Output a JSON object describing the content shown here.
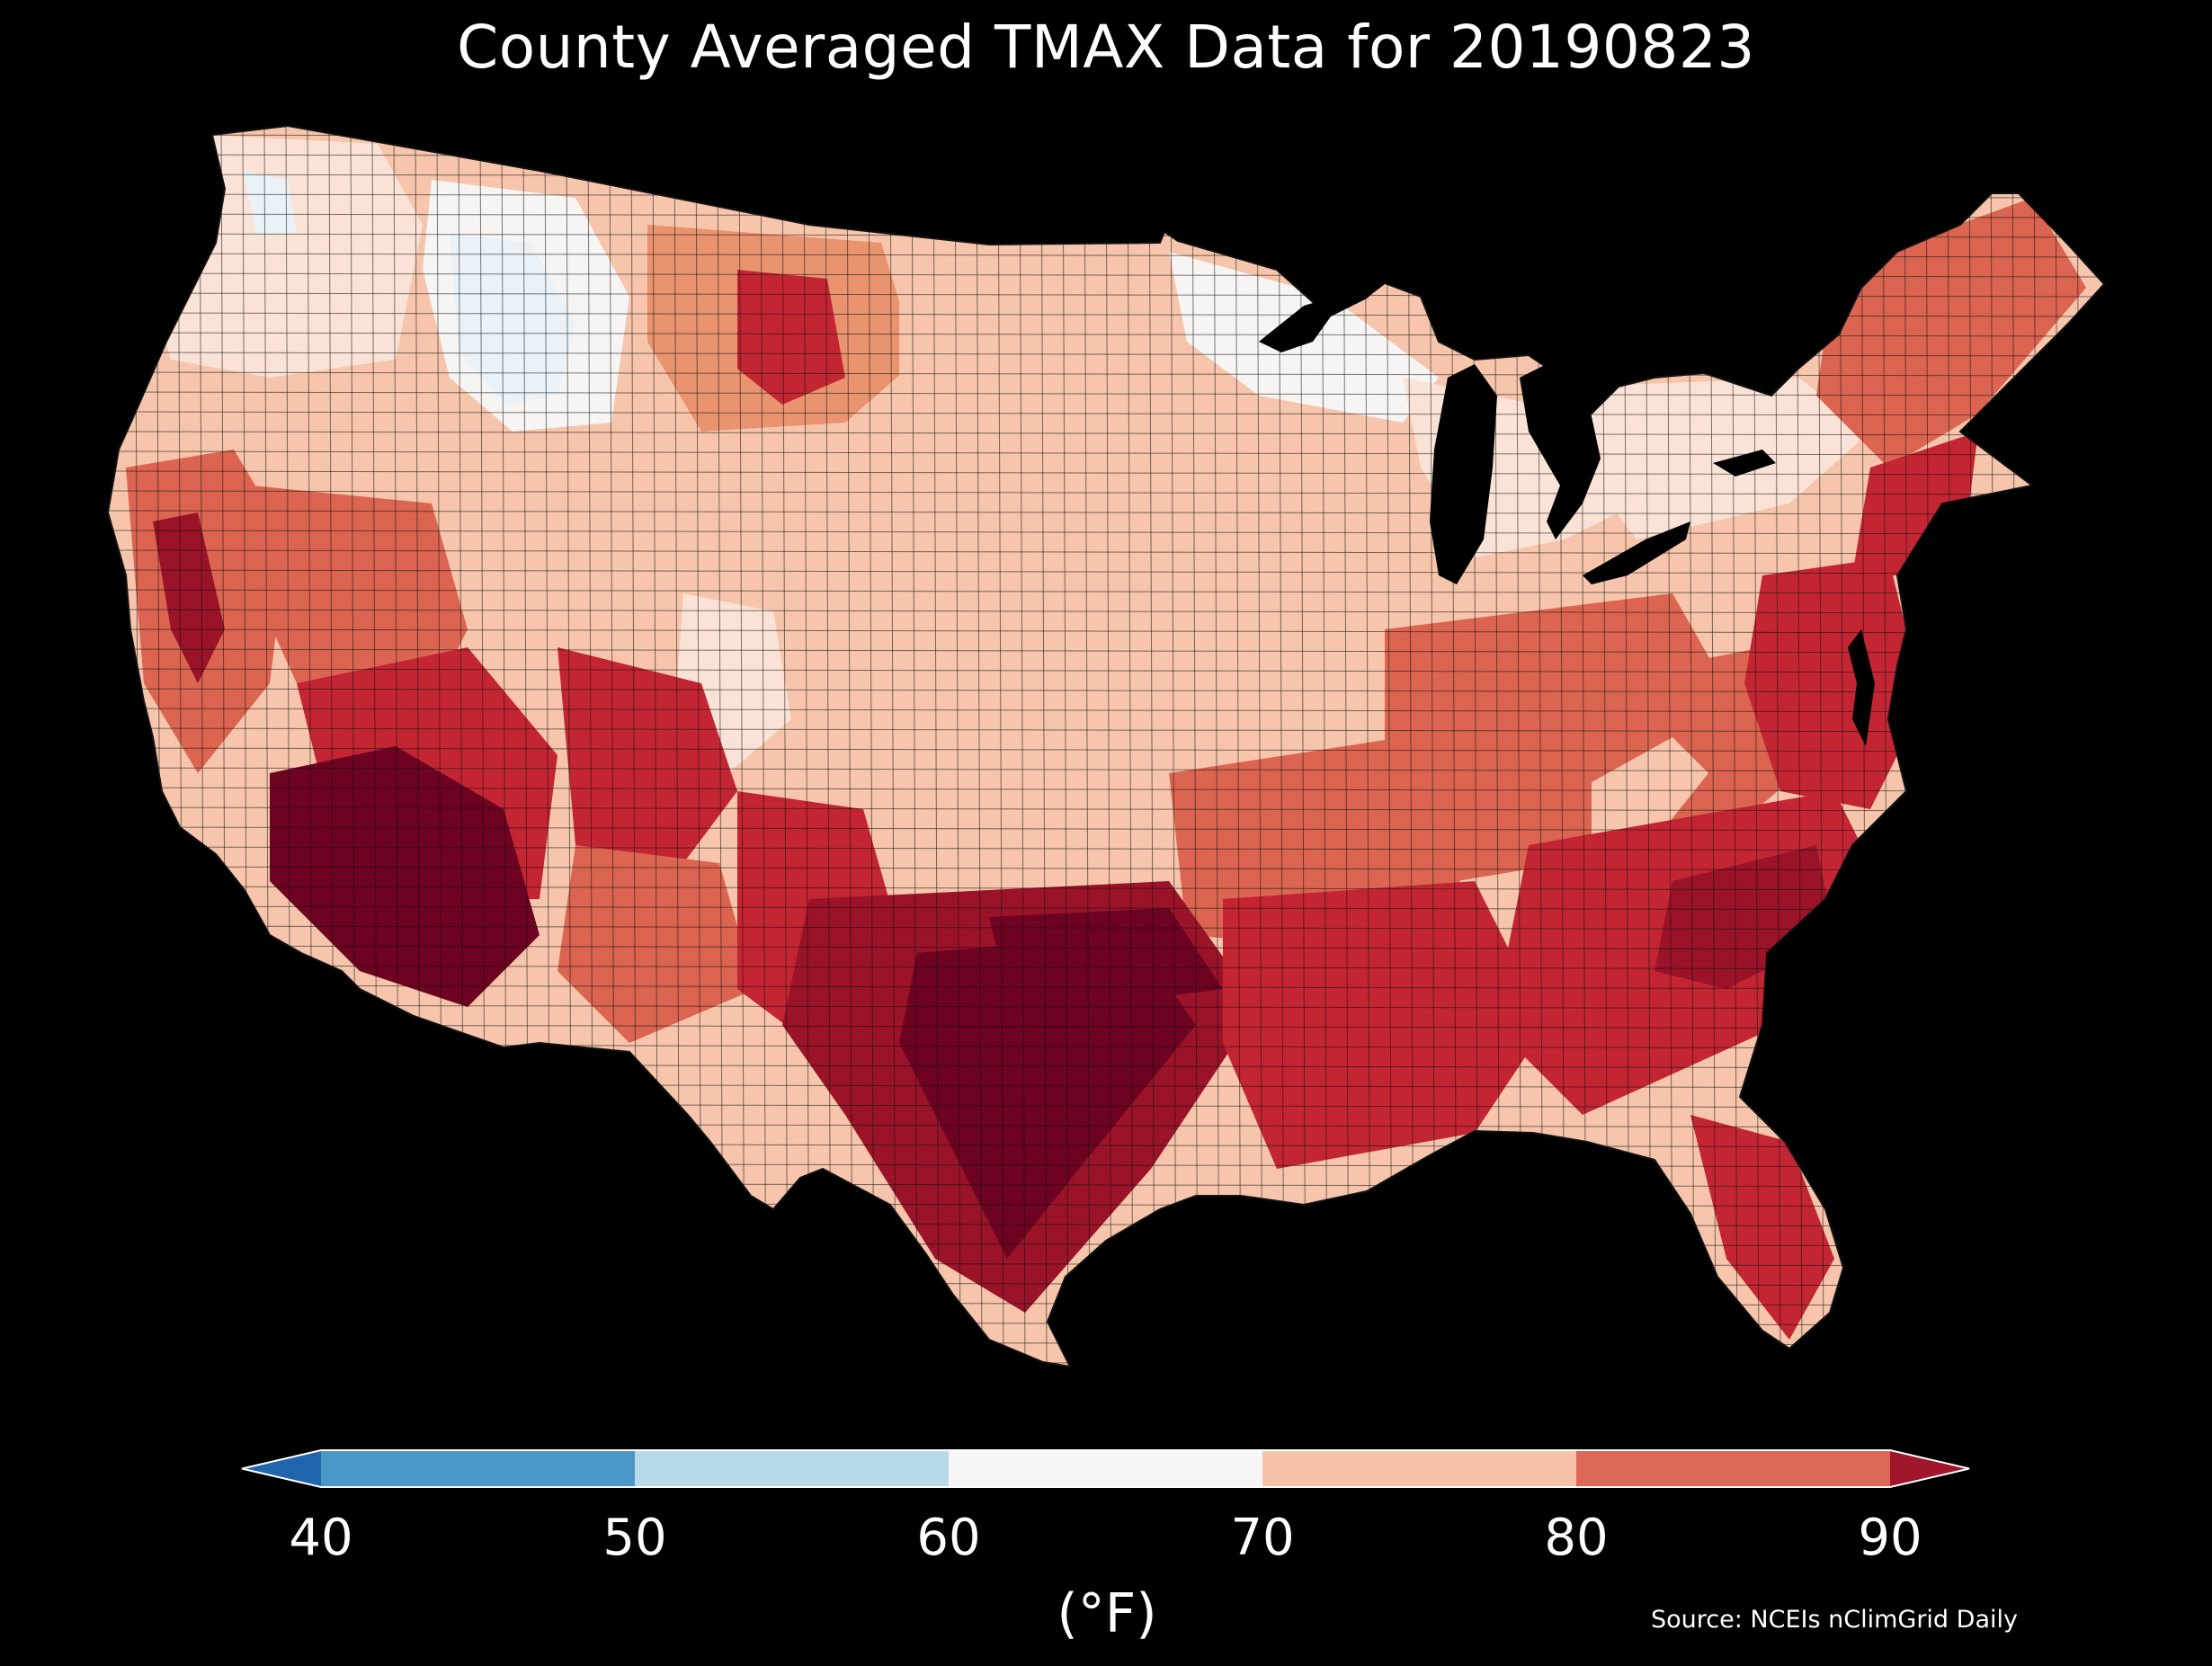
{
  "title": "County Averaged TMAX Data for 20190823",
  "colorbar": {
    "ticks": [
      "40",
      "50",
      "60",
      "70",
      "80",
      "90"
    ],
    "label": "(°F)",
    "bins": [
      {
        "from": null,
        "to": 40,
        "color": "#2166ac"
      },
      {
        "from": 40,
        "to": 50,
        "color": "#4b98c8"
      },
      {
        "from": 50,
        "to": 60,
        "color": "#b8d9ea"
      },
      {
        "from": 60,
        "to": 70,
        "color": "#f6f6f6"
      },
      {
        "from": 70,
        "to": 80,
        "color": "#f7c3a8"
      },
      {
        "from": 80,
        "to": 90,
        "color": "#dc6855"
      },
      {
        "from": 90,
        "to": null,
        "color": "#a0162a"
      }
    ]
  },
  "source": "Source: NCEIs nClimGrid Daily",
  "map_colors": {
    "hot": "#6d0320",
    "deep": "#9a1328",
    "red": "#c32533",
    "mid": "#db6550",
    "warm": "#e9936f",
    "light": "#f6c5ab",
    "pale": "#fae3d6",
    "white": "#f7f5f3",
    "cool": "#eaf2f8",
    "border": "#111111"
  }
}
